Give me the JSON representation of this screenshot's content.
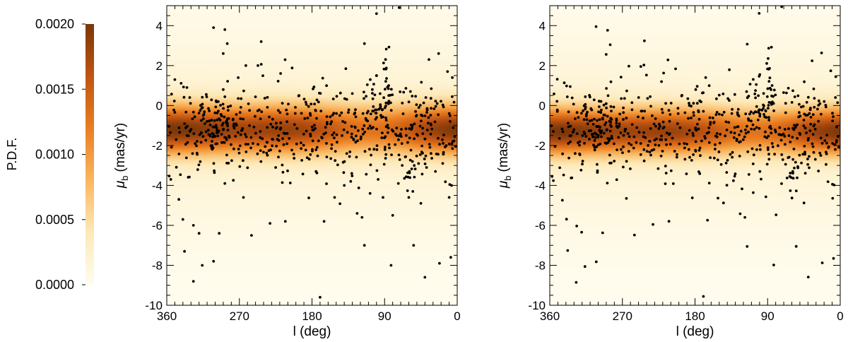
{
  "chart_data": {
    "colorbar": {
      "title": "P.D.F.",
      "min": 0.0,
      "max": 0.002,
      "tick_values": [
        0.0,
        0.0005,
        0.001,
        0.0015,
        0.002
      ],
      "tick_labels": [
        "0.0000",
        "0.0005",
        "0.0010",
        "0.0015",
        "0.0020"
      ],
      "colormap": [
        "#fffdf0",
        "#fde9b8",
        "#f9b760",
        "#ea7e21",
        "#c05412",
        "#7a3608"
      ]
    },
    "panels": [
      {
        "type": "scatter+density",
        "xlabel": "l (deg)",
        "ylabel_symbol": "μ",
        "ylabel_sub": "b",
        "ylabel_unit": "(mas/yr)",
        "xlim": [
          360,
          0
        ],
        "ylim": [
          -10,
          5
        ],
        "x_ticks": [
          360,
          270,
          180,
          90,
          0
        ],
        "x_tick_labels": [
          "360",
          "270",
          "180",
          "90",
          "0"
        ],
        "y_ticks": [
          4,
          2,
          0,
          -2,
          -4,
          -6,
          -8,
          -10
        ],
        "y_tick_labels": [
          "4",
          "2",
          "0",
          "-2",
          "-4",
          "-6",
          "-8",
          "-10"
        ],
        "density_model": {
          "center_mu_b": -1.2,
          "sigma_core": 0.85,
          "sigma_halo": 3.6
        }
      },
      {
        "type": "scatter+density",
        "xlabel": "l (deg)",
        "ylabel_symbol": "μ",
        "ylabel_sub": "b",
        "ylabel_unit": "(mas/yr)",
        "xlim": [
          360,
          0
        ],
        "ylim": [
          -10,
          5
        ],
        "x_ticks": [
          360,
          270,
          180,
          90,
          0
        ],
        "x_tick_labels": [
          "360",
          "270",
          "180",
          "90",
          "0"
        ],
        "y_ticks": [
          4,
          2,
          0,
          -2,
          -4,
          -6,
          -8,
          -10
        ],
        "y_tick_labels": [
          "4",
          "2",
          "0",
          "-2",
          "-4",
          "-6",
          "-8",
          "-10"
        ],
        "density_model": {
          "center_mu_b": -1.3,
          "sigma_core": 0.8,
          "sigma_halo": 3.4
        }
      }
    ],
    "stars": {
      "outliers": [
        [
          302,
          3.9
        ],
        [
          288,
          3.8
        ],
        [
          285,
          3.1
        ],
        [
          243,
          3.2
        ],
        [
          115,
          3.1
        ],
        [
          72,
          4.9
        ],
        [
          35,
          2.3
        ],
        [
          23,
          2.6
        ],
        [
          262,
          2.0
        ],
        [
          247,
          2.0
        ],
        [
          350,
          1.3
        ],
        [
          335,
          0.9
        ],
        [
          290,
          0.8
        ],
        [
          196,
          0.5
        ],
        [
          130,
          0.6
        ],
        [
          100,
          1.5
        ],
        [
          58,
          0.7
        ],
        [
          12,
          1.7
        ],
        [
          6,
          1.4
        ],
        [
          290,
          2.6
        ],
        [
          100,
          4.6
        ],
        [
          355,
          -3.7
        ],
        [
          345,
          -4.7
        ],
        [
          340,
          -5.7
        ],
        [
          327,
          -6.0
        ],
        [
          320,
          -6.4
        ],
        [
          295,
          -6.4
        ],
        [
          288,
          -3.9
        ],
        [
          255,
          -6.5
        ],
        [
          232,
          -5.9
        ],
        [
          213,
          -5.8
        ],
        [
          170,
          -9.6
        ],
        [
          165,
          -5.8
        ],
        [
          152,
          -4.6
        ],
        [
          140,
          -4.0
        ],
        [
          124,
          -5.4
        ],
        [
          118,
          -5.6
        ],
        [
          108,
          -4.4
        ],
        [
          98,
          -3.7
        ],
        [
          92,
          -4.6
        ],
        [
          80,
          -5.5
        ],
        [
          73,
          -3.9
        ],
        [
          60,
          -4.6
        ],
        [
          55,
          -4.3
        ],
        [
          45,
          -4.9
        ],
        [
          38,
          -3.1
        ],
        [
          27,
          -3.3
        ],
        [
          18,
          -2.9
        ],
        [
          10,
          -4.6
        ],
        [
          7,
          -4.0
        ],
        [
          316,
          -8.0
        ],
        [
          302,
          -7.8
        ],
        [
          338,
          -7.3
        ],
        [
          327,
          -8.8
        ],
        [
          115,
          -7.0
        ],
        [
          82,
          -8.0
        ],
        [
          54,
          -7.0
        ],
        [
          40,
          -8.6
        ],
        [
          22,
          -7.9
        ],
        [
          8,
          -7.6
        ],
        [
          132,
          -3.8
        ],
        [
          265,
          -4.6
        ],
        [
          225,
          -3.1
        ],
        [
          175,
          -3.3
        ]
      ],
      "clumps": [
        {
          "l": 300,
          "mu_b": -1.0,
          "sl": 12,
          "sm": 0.7,
          "n": 55
        },
        {
          "l": 87,
          "mu_b": 1.3,
          "sl": 3,
          "sm": 1.2,
          "n": 22
        },
        {
          "l": 103,
          "mu_b": 0.2,
          "sl": 7,
          "sm": 0.7,
          "n": 18
        },
        {
          "l": 60,
          "mu_b": -3.3,
          "sl": 5,
          "sm": 0.8,
          "n": 14
        }
      ],
      "band": {
        "l_min": 2,
        "l_max": 358,
        "mu_b_center": -1.2,
        "sigma": 1.1,
        "n": 520
      }
    }
  }
}
